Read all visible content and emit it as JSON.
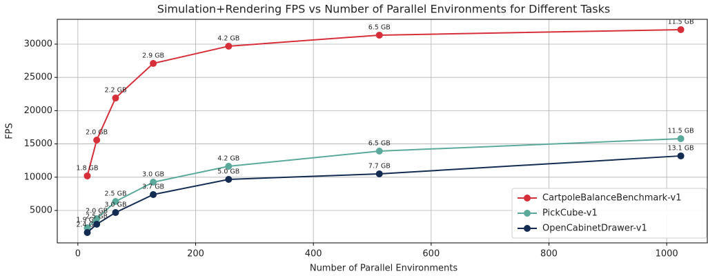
{
  "chart_data": {
    "type": "line",
    "title": "Simulation+Rendering FPS vs Number of Parallel Environments for Different Tasks",
    "xlabel": "Number of Parallel Environments",
    "ylabel": "FPS",
    "x": [
      16,
      32,
      64,
      128,
      256,
      512,
      1024
    ],
    "series": [
      {
        "name": "CartpoleBalanceBenchmark-v1",
        "color": "#d62f3a",
        "values": [
          10190,
          15580,
          21900,
          27100,
          29690,
          31350,
          32180
        ],
        "value_labels": [
          "1.8 GB",
          "2.0 GB",
          "2.2 GB",
          "2.9 GB",
          "4.2 GB",
          "6.5 GB",
          "11.5 GB"
        ]
      },
      {
        "name": "PickCube-v1",
        "color": "#5ba99b",
        "values": [
          2400,
          3750,
          6350,
          9250,
          11640,
          13920,
          15790
        ],
        "value_labels": [
          "1.9 GB",
          "2.0 GB",
          "2.5 GB",
          "3.0 GB",
          "4.2 GB",
          "6.5 GB",
          "11.5 GB"
        ]
      },
      {
        "name": "OpenCabinetDrawer-v1",
        "color": "#142c52",
        "values": [
          1680,
          2930,
          4690,
          7390,
          9670,
          10500,
          13200
        ],
        "value_labels": [
          "2.4 GB",
          "2.5 GB",
          "3.0 GB",
          "3.7 GB",
          "5.0 GB",
          "7.7 GB",
          "13.1 GB"
        ]
      }
    ],
    "xlim": [
      -35,
      1069
    ],
    "xticks": [
      0,
      200,
      400,
      600,
      800,
      1000
    ],
    "ylim": [
      125,
      33730
    ],
    "yticks": [
      5000,
      10000,
      15000,
      20000,
      25000,
      30000
    ],
    "grid": true,
    "legend": "lower right"
  }
}
